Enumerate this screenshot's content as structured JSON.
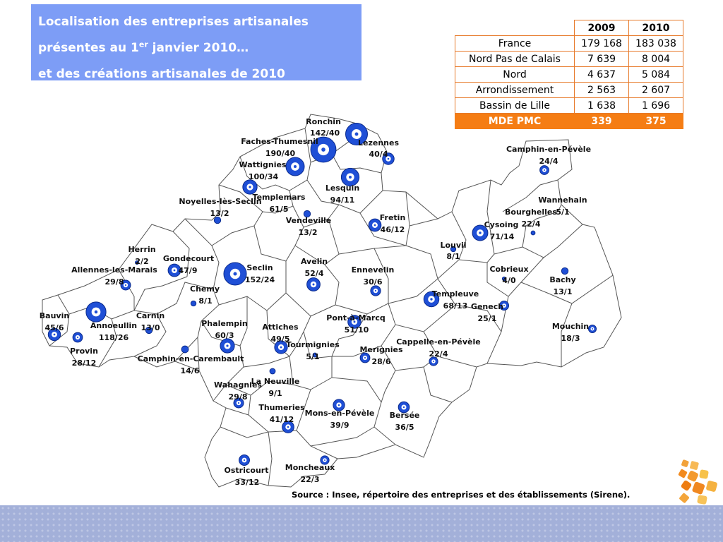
{
  "title": {
    "line1": "Localisation des entreprises artisanales",
    "line2_before": "présentes au 1",
    "line2_sup": "er",
    "line2_after": " janvier 2010…",
    "line3": "et des créations artisanales de 2010"
  },
  "stats_table": {
    "headers": [
      "2009",
      "2010"
    ],
    "rows": [
      {
        "label": "France",
        "v2009": "179 168",
        "v2010": "183 038"
      },
      {
        "label": "Nord Pas de Calais",
        "v2009": "7 639",
        "v2010": "8 004"
      },
      {
        "label": "Nord",
        "v2009": "4 637",
        "v2010": "5 084"
      },
      {
        "label": "Arrondissement",
        "v2009": "2 563",
        "v2010": "2 607"
      },
      {
        "label": "Bassin de Lille",
        "v2009": "1 638",
        "v2010": "1 696"
      }
    ],
    "highlight": {
      "label": "MDE PMC",
      "v2009": "339",
      "v2010": "375"
    }
  },
  "communes": [
    {
      "name": "Ronchin",
      "value": "142/40",
      "companies": 142,
      "creations": 40
    },
    {
      "name": "Lezennes",
      "value": "40/4",
      "companies": 40,
      "creations": 4
    },
    {
      "name": "Faches-Thumesnil",
      "value": "190/40",
      "companies": 190,
      "creations": 40
    },
    {
      "name": "Wattignies",
      "value": "100/34",
      "companies": 100,
      "creations": 34
    },
    {
      "name": "Lesquin",
      "value": "94/11",
      "companies": 94,
      "creations": 11
    },
    {
      "name": "Templemars",
      "value": "61/5",
      "companies": 61,
      "creations": 5
    },
    {
      "name": "Noyelles-lès-Seclin",
      "value": "13/2",
      "companies": 13,
      "creations": 2
    },
    {
      "name": "Vendeville",
      "value": "13/2",
      "companies": 13,
      "creations": 2
    },
    {
      "name": "Fretin",
      "value": "46/12",
      "companies": 46,
      "creations": 12
    },
    {
      "name": "Camphin-en-Pévèle",
      "value": "24/4",
      "companies": 24,
      "creations": 4
    },
    {
      "name": "Wannehain",
      "value": "",
      "companies": null,
      "creations": null
    },
    {
      "name": "Bourghelles",
      "value": "5/1",
      "companies": 5,
      "creations": 1
    },
    {
      "name": "Cysoing",
      "value": "71/14",
      "companies": 71,
      "creations": 14
    },
    {
      "name": "",
      "value": "22/4",
      "companies": 22,
      "creations": 4
    },
    {
      "name": "Louvil",
      "value": "8/1",
      "companies": 8,
      "creations": 1
    },
    {
      "name": "Herrin",
      "value": "2/2",
      "companies": 2,
      "creations": 2
    },
    {
      "name": "Gondecourt",
      "value": "47/9",
      "companies": 47,
      "creations": 9
    },
    {
      "name": "Seclin",
      "value": "152/24",
      "companies": 152,
      "creations": 24
    },
    {
      "name": "Avelin",
      "value": "52/4",
      "companies": 52,
      "creations": 4
    },
    {
      "name": "Ennevelin",
      "value": "30/6",
      "companies": 30,
      "creations": 6
    },
    {
      "name": "Allennes-les-Marais",
      "value": "29/8",
      "companies": 29,
      "creations": 8
    },
    {
      "name": "Chemy",
      "value": "8/1",
      "companies": 8,
      "creations": 1
    },
    {
      "name": "Cobrieux",
      "value": "4/0",
      "companies": 4,
      "creations": 0
    },
    {
      "name": "Bachy",
      "value": "13/1",
      "companies": 13,
      "creations": 1
    },
    {
      "name": "Templeuve",
      "value": "68/13",
      "companies": 68,
      "creations": 13
    },
    {
      "name": "Genech",
      "value": "25/1",
      "companies": 25,
      "creations": 1
    },
    {
      "name": "Bauvin",
      "value": "45/6",
      "companies": 45,
      "creations": 6
    },
    {
      "name": "Annoeullin",
      "value": "118/26",
      "companies": 118,
      "creations": 26
    },
    {
      "name": "Carnin",
      "value": "13/0",
      "companies": 13,
      "creations": 0
    },
    {
      "name": "Phalempin",
      "value": "60/3",
      "companies": 60,
      "creations": 3
    },
    {
      "name": "Attiches",
      "value": "49/5",
      "companies": 49,
      "creations": 5
    },
    {
      "name": "Pont-à-Marcq",
      "value": "51/10",
      "companies": 51,
      "creations": 10
    },
    {
      "name": "Mouchin",
      "value": "18/3",
      "companies": 18,
      "creations": 3
    },
    {
      "name": "Provin",
      "value": "28/12",
      "companies": 28,
      "creations": 12
    },
    {
      "name": "Tourmignies",
      "value": "5/1",
      "companies": 5,
      "creations": 1
    },
    {
      "name": "Merignies",
      "value": "28/6",
      "companies": 28,
      "creations": 6
    },
    {
      "name": "Cappelle-en-Pévèle",
      "value": "22/4",
      "companies": 22,
      "creations": 4
    },
    {
      "name": "Camphin-en-Carembault",
      "value": "14/6",
      "companies": 14,
      "creations": 6
    },
    {
      "name": "La Neuville",
      "value": "9/1",
      "companies": 9,
      "creations": 1
    },
    {
      "name": "Wahagnies",
      "value": "29/8",
      "companies": 29,
      "creations": 8
    },
    {
      "name": "Thumeries",
      "value": "41/12",
      "companies": 41,
      "creations": 12
    },
    {
      "name": "Mons-en-Pévèle",
      "value": "39/9",
      "companies": 39,
      "creations": 9
    },
    {
      "name": "Bersée",
      "value": "36/5",
      "companies": 36,
      "creations": 5
    },
    {
      "name": "Ostricourt",
      "value": "33/12",
      "companies": 33,
      "creations": 12
    },
    {
      "name": "Moncheaux",
      "value": "22/3",
      "companies": 22,
      "creations": 3
    }
  ],
  "source": "Source : Insee, répertoire des entreprises et des établissements (Sirene).",
  "colors": {
    "title_bg": "#7d9df6",
    "table_border": "#e77a2a",
    "highlight_bg": "#f57d14",
    "bubble_fill": "#1f4fd6",
    "bubble_stroke": "#0a2a8c",
    "map_border": "#555555",
    "bottom_band": "#a3b0d9"
  }
}
